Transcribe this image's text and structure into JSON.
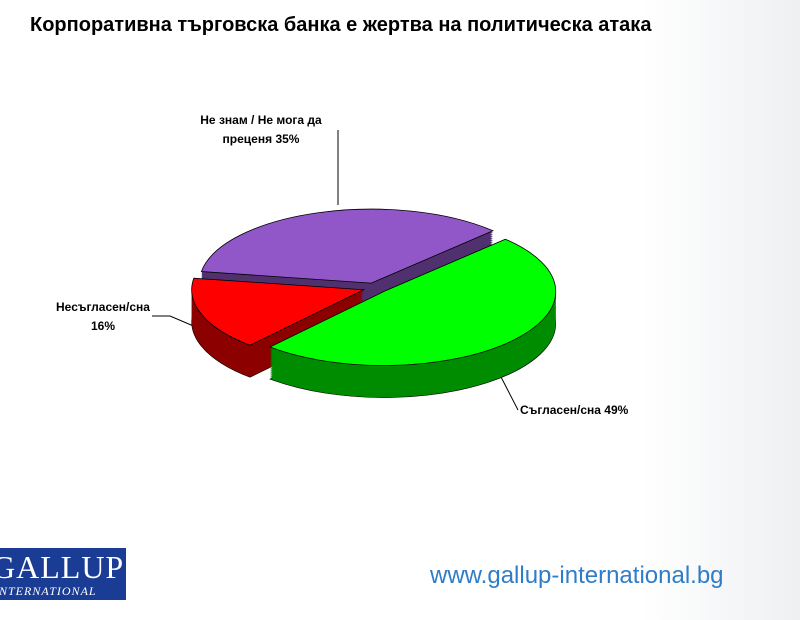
{
  "chart_data": {
    "type": "pie",
    "title": "Корпоративна търговска банка е жертва на политическа атака",
    "categories": [
      "Съгласен/сна",
      "Несъгласен/сна",
      "Не знам / Не мога да преценя"
    ],
    "values": [
      49,
      16,
      35
    ],
    "value_labels": [
      "49%",
      "16%",
      "35%"
    ],
    "colors": [
      "#00ff00",
      "#ff0000",
      "#9157c8"
    ]
  },
  "footer": {
    "url": "www.gallup-international.bg",
    "logo": "GALLUP",
    "logo_sub": "INTERNATIONAL"
  }
}
